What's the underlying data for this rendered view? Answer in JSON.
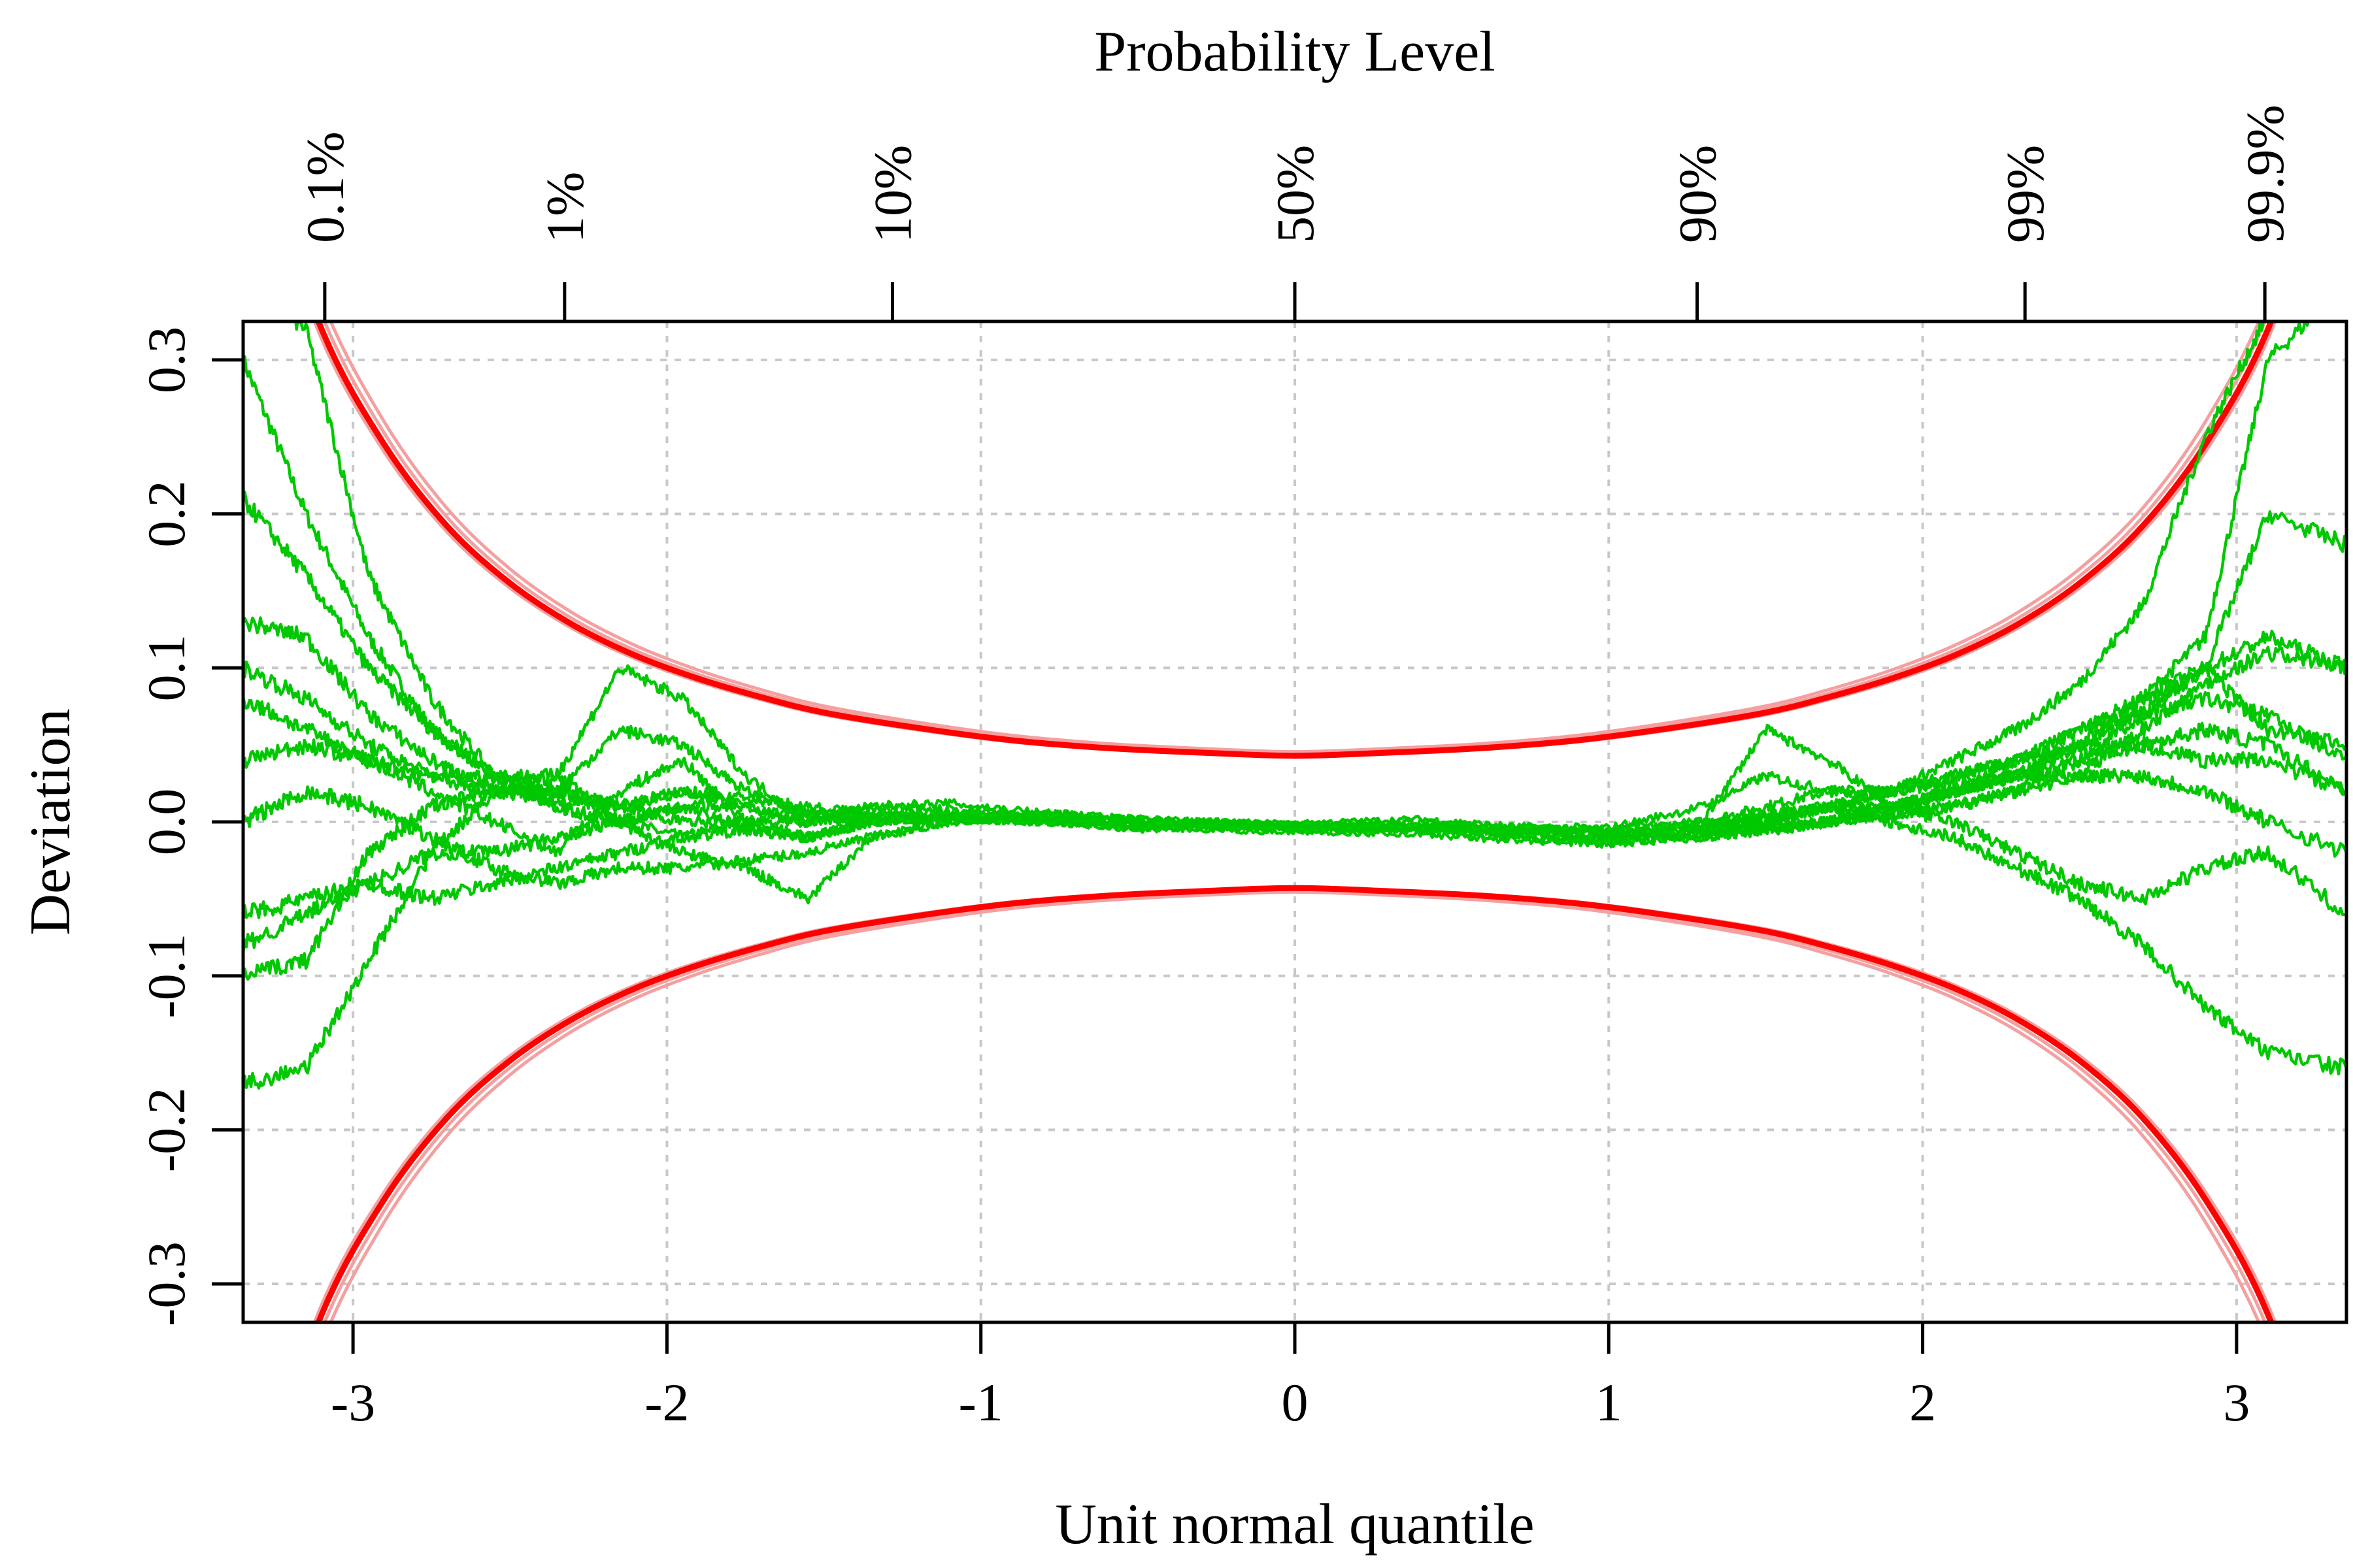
{
  "chart_data": {
    "type": "line",
    "title": "",
    "xlabel": "Unit normal quantile",
    "ylabel": "Deviation",
    "top_axis_label": "Probability Level",
    "xlim": [
      -3.35,
      3.35
    ],
    "ylim": [
      -0.325,
      0.325
    ],
    "x_ticks": [
      -3,
      -2,
      -1,
      0,
      1,
      2,
      3
    ],
    "x_tick_labels": [
      "-3",
      "-2",
      "-1",
      "0",
      "1",
      "2",
      "3"
    ],
    "y_ticks": [
      -0.3,
      -0.2,
      -0.1,
      0.0,
      0.1,
      0.2,
      0.3
    ],
    "y_tick_labels": [
      "-0.3",
      "-0.2",
      "-0.1",
      "0.0",
      "0.1",
      "0.2",
      "0.3"
    ],
    "top_ticks": [
      {
        "label": "0.1%",
        "q": -3.09
      },
      {
        "label": "1%",
        "q": -2.326
      },
      {
        "label": "10%",
        "q": -1.2816
      },
      {
        "label": "50%",
        "q": 0
      },
      {
        "label": "90%",
        "q": 1.2816
      },
      {
        "label": "99%",
        "q": 2.326
      },
      {
        "label": "99.9%",
        "q": 3.09
      }
    ],
    "grid": true,
    "colors": {
      "envelope": "#ff0000",
      "envelope_light": "#f4a0a0",
      "series": "#00c800"
    },
    "envelope": {
      "description_note": "",
      "q": [
        -3.3,
        -3.1,
        -2.9,
        -2.7,
        -2.5,
        -2.3,
        -2.1,
        -1.9,
        -1.7,
        -1.5,
        -1.2,
        -0.9,
        -0.6,
        -0.3,
        0,
        0.3,
        0.6,
        0.9,
        1.2,
        1.5,
        1.7,
        1.9,
        2.1,
        2.3,
        2.5,
        2.7,
        2.9,
        3.1,
        3.3
      ],
      "upper": [
        0.44,
        0.32,
        0.245,
        0.192,
        0.155,
        0.128,
        0.108,
        0.093,
        0.081,
        0.071,
        0.061,
        0.053,
        0.048,
        0.045,
        0.043,
        0.045,
        0.048,
        0.053,
        0.061,
        0.071,
        0.081,
        0.093,
        0.108,
        0.128,
        0.155,
        0.192,
        0.245,
        0.32,
        0.44
      ],
      "lower": [
        -0.44,
        -0.32,
        -0.245,
        -0.192,
        -0.155,
        -0.128,
        -0.108,
        -0.093,
        -0.081,
        -0.071,
        -0.061,
        -0.053,
        -0.048,
        -0.045,
        -0.043,
        -0.045,
        -0.048,
        -0.053,
        -0.061,
        -0.071,
        -0.081,
        -0.093,
        -0.108,
        -0.128,
        -0.155,
        -0.192,
        -0.245,
        -0.32,
        -0.44
      ]
    },
    "x": [
      -3.35,
      -3.15,
      -2.95,
      -2.75,
      -2.55,
      -2.35,
      -2.15,
      -1.95,
      -1.75,
      -1.55,
      -1.35,
      -1.1,
      -0.8,
      -0.5,
      -0.2,
      0.1,
      0.4,
      0.7,
      1.0,
      1.3,
      1.5,
      1.7,
      1.9,
      2.1,
      2.3,
      2.5,
      2.7,
      2.9,
      3.1,
      3.35
    ],
    "series": [
      {
        "values": [
          0.3,
          0.2,
          0.12,
          0.06,
          0.03,
          0.01,
          0.0,
          -0.01,
          0.0,
          0.005,
          0.0,
          0.004,
          0.002,
          -0.002,
          0.0,
          -0.003,
          0.0,
          -0.004,
          -0.005,
          0.0,
          0.01,
          0.02,
          0.02,
          0.03,
          0.04,
          0.06,
          0.08,
          0.12,
          0.3,
          0.35
        ]
      },
      {
        "values": [
          0.35,
          0.32,
          0.16,
          0.08,
          0.03,
          0.02,
          0.01,
          0.02,
          0.01,
          0.0,
          0.005,
          0.006,
          0.003,
          0.0,
          -0.002,
          0.0,
          0.002,
          -0.003,
          -0.004,
          0.01,
          0.03,
          0.02,
          0.02,
          0.04,
          0.06,
          0.09,
          0.14,
          0.25,
          0.33,
          0.35
        ]
      },
      {
        "values": [
          0.21,
          0.16,
          0.1,
          0.06,
          0.03,
          0.01,
          0.0,
          0.01,
          -0.005,
          -0.01,
          0.0,
          0.002,
          0.0,
          -0.005,
          -0.003,
          -0.006,
          -0.004,
          -0.008,
          -0.01,
          -0.005,
          0.0,
          0.01,
          0.01,
          0.02,
          0.03,
          0.05,
          0.07,
          0.1,
          0.2,
          0.18
        ]
      },
      {
        "values": [
          0.13,
          0.12,
          0.07,
          0.04,
          0.02,
          0.02,
          0.06,
          0.05,
          0.02,
          0.005,
          0.01,
          0.008,
          0.004,
          0.0,
          -0.002,
          -0.004,
          -0.004,
          -0.008,
          -0.012,
          0.0,
          0.06,
          0.04,
          0.01,
          0.02,
          0.03,
          0.05,
          0.08,
          0.1,
          0.12,
          0.1
        ]
      },
      {
        "values": [
          0.1,
          0.08,
          0.05,
          0.03,
          0.03,
          0.03,
          0.1,
          0.08,
          0.03,
          0.0,
          0.01,
          0.012,
          0.006,
          0.002,
          0.0,
          -0.002,
          -0.003,
          -0.006,
          -0.01,
          -0.005,
          0.005,
          0.01,
          0.02,
          0.03,
          0.04,
          0.06,
          0.07,
          0.08,
          0.07,
          0.04
        ]
      },
      {
        "values": [
          0.08,
          0.06,
          0.04,
          0.02,
          0.0,
          -0.02,
          0.02,
          0.04,
          0.0,
          -0.01,
          0.0,
          0.005,
          0.0,
          -0.003,
          0.0,
          -0.002,
          -0.003,
          -0.004,
          -0.006,
          -0.004,
          0.0,
          0.01,
          0.02,
          0.025,
          0.03,
          0.04,
          0.05,
          0.06,
          0.05,
          0.02
        ]
      },
      {
        "values": [
          0.04,
          0.05,
          0.04,
          0.03,
          0.02,
          0.03,
          0.0,
          -0.02,
          -0.03,
          -0.05,
          -0.01,
          0.0,
          0.004,
          0.0,
          -0.003,
          -0.004,
          -0.005,
          -0.008,
          -0.012,
          -0.01,
          -0.006,
          0.0,
          0.01,
          0.02,
          0.03,
          0.03,
          0.03,
          0.02,
          0.0,
          -0.02
        ]
      },
      {
        "values": [
          0.0,
          0.02,
          0.01,
          -0.01,
          -0.03,
          -0.04,
          -0.03,
          -0.03,
          -0.025,
          -0.02,
          -0.01,
          0.0,
          0.006,
          0.002,
          0.0,
          -0.001,
          -0.002,
          -0.004,
          -0.006,
          -0.003,
          0.0,
          0.01,
          0.01,
          0.0,
          -0.02,
          -0.04,
          -0.05,
          -0.03,
          -0.02,
          -0.06
        ]
      },
      {
        "values": [
          -0.06,
          -0.05,
          -0.04,
          -0.05,
          -0.04,
          -0.03,
          -0.02,
          -0.01,
          -0.005,
          -0.01,
          0.0,
          0.003,
          0.0,
          -0.004,
          -0.002,
          -0.004,
          -0.005,
          -0.006,
          -0.008,
          -0.006,
          -0.003,
          0.0,
          0.005,
          0.01,
          0.02,
          0.03,
          0.06,
          0.09,
          0.11,
          0.1
        ]
      },
      {
        "values": [
          -0.08,
          -0.06,
          -0.04,
          -0.02,
          -0.02,
          -0.01,
          0.0,
          0.01,
          0.01,
          0.005,
          0.005,
          0.004,
          0.002,
          0.0,
          -0.002,
          -0.003,
          -0.003,
          -0.005,
          -0.006,
          -0.002,
          0.005,
          0.01,
          0.0,
          -0.01,
          -0.03,
          -0.05,
          -0.08,
          -0.12,
          -0.15,
          -0.16
        ]
      },
      {
        "values": [
          -0.1,
          -0.09,
          -0.02,
          0.01,
          0.02,
          0.015,
          0.01,
          0.0,
          0.0,
          0.0,
          0.002,
          0.002,
          0.0,
          -0.002,
          -0.004,
          -0.005,
          -0.006,
          -0.01,
          -0.014,
          -0.008,
          -0.004,
          0.0,
          0.01,
          0.02,
          0.04,
          0.05,
          0.05,
          0.04,
          0.04,
          0.02
        ]
      },
      {
        "values": [
          -0.17,
          -0.16,
          -0.09,
          -0.02,
          0.02,
          0.02,
          0.01,
          0.02,
          0.015,
          0.01,
          0.005,
          0.003,
          0.0,
          -0.004,
          -0.006,
          -0.007,
          -0.008,
          -0.012,
          -0.014,
          -0.01,
          -0.005,
          0.0,
          0.005,
          0.01,
          0.02,
          0.04,
          0.07,
          0.1,
          0.06,
          0.05
        ]
      }
    ]
  }
}
